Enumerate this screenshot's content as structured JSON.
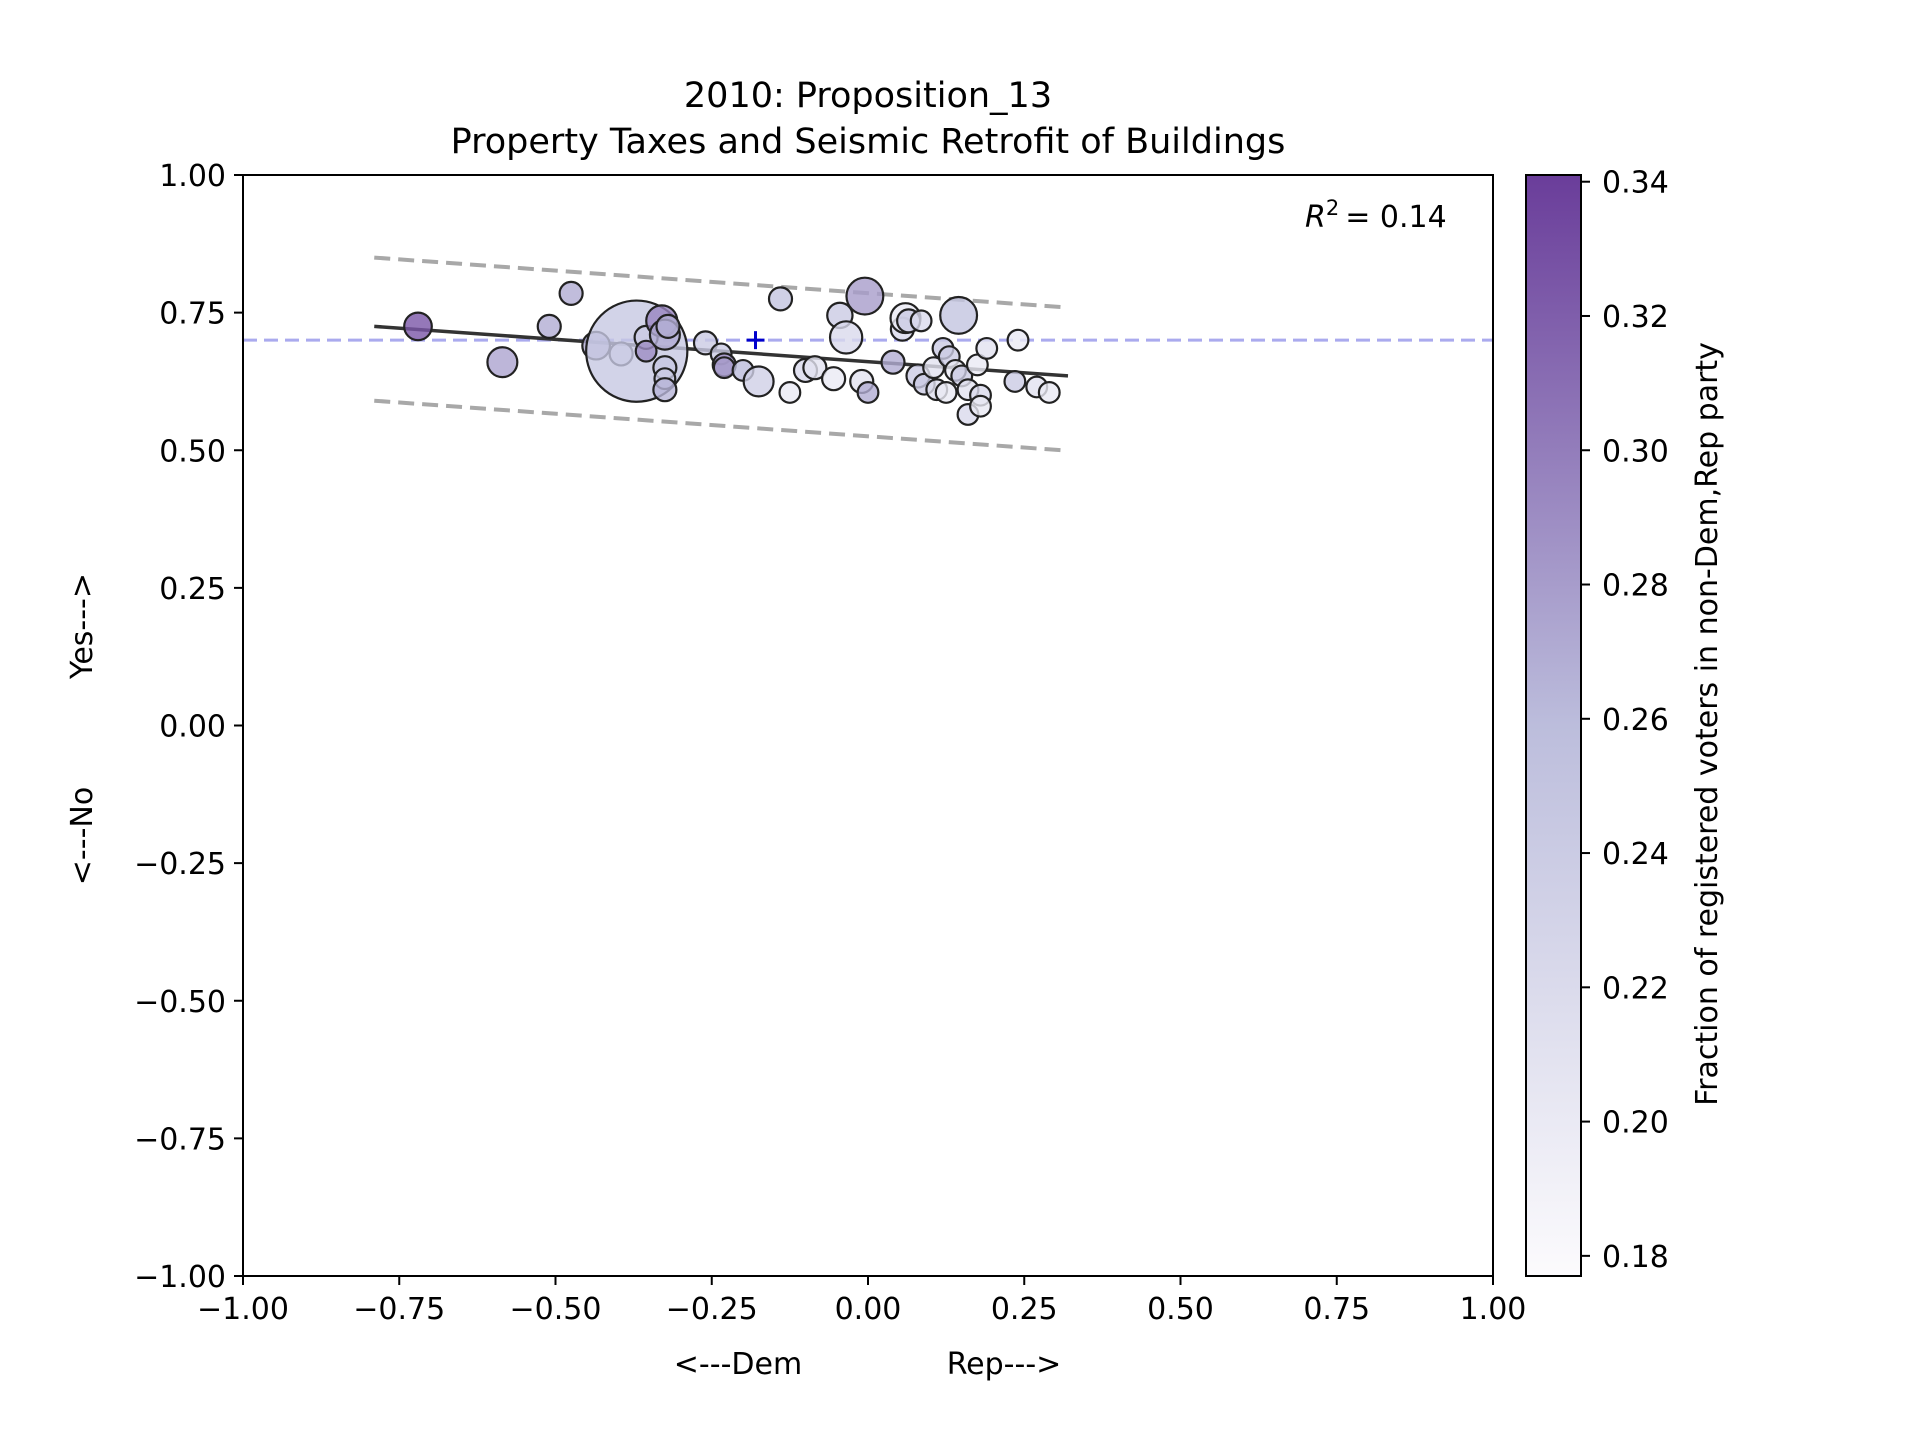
{
  "chart_data": {
    "type": "scatter",
    "title": "2010: Proposition_13",
    "subtitle": "Property Taxes and Seismic Retrofit of Buildings",
    "xlabel_left": "<---Dem",
    "xlabel_right": "Rep--->",
    "ylabel_bottom": "<---No",
    "ylabel_top": "Yes--->",
    "xlim": [
      -1.0,
      1.0
    ],
    "ylim": [
      -1.0,
      1.0
    ],
    "xticks": [
      "−1.00",
      "−0.75",
      "−0.50",
      "−0.25",
      "0.00",
      "0.25",
      "0.50",
      "0.75",
      "1.00"
    ],
    "yticks": [
      "−1.00",
      "−0.75",
      "−0.50",
      "−0.25",
      "0.00",
      "0.25",
      "0.50",
      "0.75",
      "1.00"
    ],
    "xtick_values": [
      -1.0,
      -0.75,
      -0.5,
      -0.25,
      0.0,
      0.25,
      0.5,
      0.75,
      1.0
    ],
    "ytick_values": [
      -1.0,
      -0.75,
      -0.5,
      -0.25,
      0.0,
      0.25,
      0.5,
      0.75,
      1.0
    ],
    "r2_label": "= 0.14",
    "colorbar": {
      "label": "Fraction of registered voters in non-Dem,Rep party",
      "range": [
        0.177,
        0.341
      ],
      "ticks": [
        "0.18",
        "0.20",
        "0.22",
        "0.24",
        "0.26",
        "0.28",
        "0.30",
        "0.32",
        "0.34"
      ],
      "tick_values": [
        0.18,
        0.2,
        0.22,
        0.24,
        0.26,
        0.28,
        0.3,
        0.32,
        0.34
      ],
      "color_low": "#fcfbfd",
      "color_high": "#6a3d9a"
    },
    "reference_line_y": 0.7,
    "reference_color": "#aaaaee",
    "mean_marker": {
      "x": -0.18,
      "y": 0.7,
      "color": "#0000cc"
    },
    "fit_line": {
      "x": [
        -0.79,
        0.32
      ],
      "y": [
        0.725,
        0.635
      ],
      "color": "#333333"
    },
    "band_upper": {
      "x": [
        -0.79,
        0.31
      ],
      "y": [
        0.85,
        0.76
      ],
      "color": "#999999"
    },
    "band_lower": {
      "x": [
        -0.79,
        0.31
      ],
      "y": [
        0.59,
        0.5
      ],
      "color": "#999999"
    },
    "points": [
      {
        "x": -0.72,
        "y": 0.725,
        "c": 0.325,
        "s": 1.2
      },
      {
        "x": -0.585,
        "y": 0.66,
        "c": 0.275,
        "s": 1.3
      },
      {
        "x": -0.51,
        "y": 0.725,
        "c": 0.27,
        "s": 1.0
      },
      {
        "x": -0.475,
        "y": 0.785,
        "c": 0.27,
        "s": 1.0
      },
      {
        "x": -0.435,
        "y": 0.69,
        "c": 0.27,
        "s": 1.2
      },
      {
        "x": -0.395,
        "y": 0.675,
        "c": 0.22,
        "s": 1.0
      },
      {
        "x": -0.37,
        "y": 0.68,
        "c": 0.245,
        "s": 4.4
      },
      {
        "x": -0.355,
        "y": 0.705,
        "c": 0.24,
        "s": 1.0
      },
      {
        "x": -0.355,
        "y": 0.68,
        "c": 0.29,
        "s": 0.9
      },
      {
        "x": -0.33,
        "y": 0.735,
        "c": 0.295,
        "s": 1.35
      },
      {
        "x": -0.325,
        "y": 0.71,
        "c": 0.27,
        "s": 1.3
      },
      {
        "x": -0.32,
        "y": 0.725,
        "c": 0.27,
        "s": 1.0
      },
      {
        "x": -0.325,
        "y": 0.65,
        "c": 0.245,
        "s": 1.0
      },
      {
        "x": -0.325,
        "y": 0.63,
        "c": 0.24,
        "s": 0.9
      },
      {
        "x": -0.325,
        "y": 0.61,
        "c": 0.265,
        "s": 1.0
      },
      {
        "x": -0.26,
        "y": 0.695,
        "c": 0.24,
        "s": 1.0
      },
      {
        "x": -0.235,
        "y": 0.675,
        "c": 0.24,
        "s": 0.9
      },
      {
        "x": -0.23,
        "y": 0.655,
        "c": 0.29,
        "s": 1.0
      },
      {
        "x": -0.23,
        "y": 0.65,
        "c": 0.28,
        "s": 0.9
      },
      {
        "x": -0.2,
        "y": 0.645,
        "c": 0.26,
        "s": 0.9
      },
      {
        "x": -0.175,
        "y": 0.625,
        "c": 0.235,
        "s": 1.3
      },
      {
        "x": -0.14,
        "y": 0.775,
        "c": 0.25,
        "s": 1.0
      },
      {
        "x": -0.125,
        "y": 0.605,
        "c": 0.2,
        "s": 0.9
      },
      {
        "x": -0.1,
        "y": 0.645,
        "c": 0.22,
        "s": 1.0
      },
      {
        "x": -0.085,
        "y": 0.65,
        "c": 0.21,
        "s": 1.0
      },
      {
        "x": -0.055,
        "y": 0.63,
        "c": 0.2,
        "s": 1.0
      },
      {
        "x": -0.045,
        "y": 0.745,
        "c": 0.24,
        "s": 1.1
      },
      {
        "x": -0.035,
        "y": 0.705,
        "c": 0.22,
        "s": 1.4
      },
      {
        "x": -0.005,
        "y": 0.78,
        "c": 0.28,
        "s": 1.6
      },
      {
        "x": -0.01,
        "y": 0.625,
        "c": 0.21,
        "s": 1.0
      },
      {
        "x": 0.0,
        "y": 0.605,
        "c": 0.27,
        "s": 0.9
      },
      {
        "x": 0.04,
        "y": 0.66,
        "c": 0.27,
        "s": 1.0
      },
      {
        "x": 0.055,
        "y": 0.72,
        "c": 0.22,
        "s": 1.0
      },
      {
        "x": 0.06,
        "y": 0.74,
        "c": 0.2,
        "s": 1.3
      },
      {
        "x": 0.065,
        "y": 0.735,
        "c": 0.24,
        "s": 1.0
      },
      {
        "x": 0.08,
        "y": 0.635,
        "c": 0.24,
        "s": 1.0
      },
      {
        "x": 0.085,
        "y": 0.735,
        "c": 0.22,
        "s": 0.9
      },
      {
        "x": 0.09,
        "y": 0.62,
        "c": 0.24,
        "s": 0.9
      },
      {
        "x": 0.105,
        "y": 0.65,
        "c": 0.21,
        "s": 0.9
      },
      {
        "x": 0.11,
        "y": 0.61,
        "c": 0.215,
        "s": 0.9
      },
      {
        "x": 0.12,
        "y": 0.685,
        "c": 0.24,
        "s": 0.9
      },
      {
        "x": 0.125,
        "y": 0.605,
        "c": 0.2,
        "s": 0.9
      },
      {
        "x": 0.13,
        "y": 0.67,
        "c": 0.24,
        "s": 0.9
      },
      {
        "x": 0.14,
        "y": 0.645,
        "c": 0.2,
        "s": 0.9
      },
      {
        "x": 0.145,
        "y": 0.745,
        "c": 0.25,
        "s": 1.6
      },
      {
        "x": 0.15,
        "y": 0.635,
        "c": 0.24,
        "s": 0.9
      },
      {
        "x": 0.16,
        "y": 0.565,
        "c": 0.22,
        "s": 0.9
      },
      {
        "x": 0.16,
        "y": 0.61,
        "c": 0.21,
        "s": 0.9
      },
      {
        "x": 0.175,
        "y": 0.655,
        "c": 0.2,
        "s": 0.9
      },
      {
        "x": 0.18,
        "y": 0.6,
        "c": 0.22,
        "s": 0.9
      },
      {
        "x": 0.18,
        "y": 0.58,
        "c": 0.2,
        "s": 0.9
      },
      {
        "x": 0.19,
        "y": 0.685,
        "c": 0.21,
        "s": 0.9
      },
      {
        "x": 0.235,
        "y": 0.625,
        "c": 0.24,
        "s": 0.9
      },
      {
        "x": 0.24,
        "y": 0.7,
        "c": 0.2,
        "s": 0.9
      },
      {
        "x": 0.27,
        "y": 0.615,
        "c": 0.21,
        "s": 0.9
      },
      {
        "x": 0.29,
        "y": 0.605,
        "c": 0.2,
        "s": 0.9
      }
    ]
  }
}
